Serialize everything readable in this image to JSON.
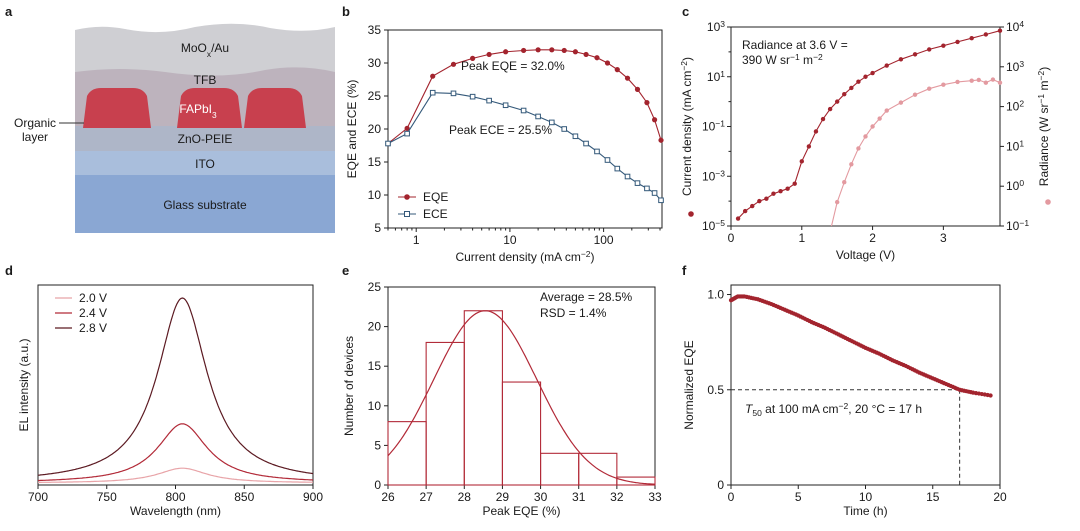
{
  "figure": {
    "panel_letters": [
      "a",
      "b",
      "c",
      "d",
      "e",
      "f"
    ]
  },
  "device_stack": {
    "layers": [
      {
        "label": "MoO",
        "sub": "x",
        "tail": "/Au",
        "color": "#cfcfd3"
      },
      {
        "label": "TFB",
        "color": "#bdb3bd"
      },
      {
        "label": "FAPbI",
        "sub": "3",
        "color": "#c8404e"
      },
      {
        "label": "ZnO-PEIE",
        "color": "#aeb6c8"
      },
      {
        "label": "ITO",
        "color": "#a9bedc"
      },
      {
        "label": "Glass substrate",
        "color": "#8aa7d3"
      }
    ],
    "side_label_line1": "Organic",
    "side_label_line2": "layer"
  },
  "chart_data": [
    {
      "panel": "b",
      "type": "line",
      "xscale": "log",
      "xlabel": "Current density (mA cm⁻²)",
      "ylabel": "EQE and ECE (%)",
      "xlim": [
        0.5,
        420
      ],
      "ylim": [
        5,
        35
      ],
      "xticks": [
        1,
        10,
        100
      ],
      "yticks": [
        5,
        10,
        15,
        20,
        25,
        30,
        35
      ],
      "legend": "bottom-left",
      "annotations": [
        "Peak EQE = 32.0%",
        "Peak ECE = 25.5%"
      ],
      "series": [
        {
          "name": "EQE",
          "color": "#a3242e",
          "marker": "circle-filled",
          "x": [
            0.5,
            0.8,
            1.5,
            2.5,
            4,
            6,
            9,
            14,
            20,
            28,
            38,
            50,
            65,
            85,
            110,
            140,
            180,
            230,
            290,
            350,
            410
          ],
          "y": [
            17.8,
            20.1,
            28.0,
            29.8,
            30.7,
            31.3,
            31.7,
            31.9,
            32.0,
            32.0,
            31.9,
            31.7,
            31.3,
            30.8,
            30.0,
            29.0,
            27.7,
            26.0,
            24.0,
            21.4,
            18.3
          ]
        },
        {
          "name": "ECE",
          "color": "#34597a",
          "marker": "square-open",
          "x": [
            0.5,
            0.8,
            1.5,
            2.5,
            4,
            6,
            9,
            14,
            20,
            28,
            38,
            50,
            65,
            85,
            110,
            140,
            180,
            230,
            290,
            350,
            410
          ],
          "y": [
            17.8,
            19.3,
            25.5,
            25.4,
            24.9,
            24.3,
            23.6,
            22.8,
            21.9,
            21.0,
            20.0,
            18.9,
            17.8,
            16.6,
            15.3,
            14.0,
            12.8,
            11.8,
            11.0,
            10.3,
            9.2
          ]
        }
      ]
    },
    {
      "panel": "c",
      "type": "line",
      "xlabel": "Voltage (V)",
      "ylabel_left": "Current density (mA cm⁻²)",
      "ylabel_right": "Radiance (W sr⁻¹ m⁻²)",
      "xlim": [
        0,
        3.8
      ],
      "xticks": [
        0,
        1,
        2,
        3
      ],
      "ylim_left_log10": [
        -5,
        3
      ],
      "ylim_right_log10": [
        -1,
        4
      ],
      "left_tick_labels": [
        "10⁻⁵",
        "10⁻³",
        "10⁻¹",
        "10¹",
        "10³"
      ],
      "right_tick_labels": [
        "10⁻¹",
        "10⁰",
        "10¹",
        "10²",
        "10³",
        "10⁴"
      ],
      "annotation_line1": "Radiance at 3.6 V =",
      "annotation_line2": "390 W sr⁻¹ m⁻²",
      "series": [
        {
          "name": "Current density",
          "axis": "left",
          "color": "#a3242e",
          "x": [
            0.1,
            0.2,
            0.3,
            0.4,
            0.5,
            0.6,
            0.7,
            0.8,
            0.9,
            1.0,
            1.1,
            1.2,
            1.3,
            1.4,
            1.5,
            1.6,
            1.7,
            1.8,
            1.9,
            2.0,
            2.2,
            2.4,
            2.6,
            2.8,
            3.0,
            3.2,
            3.4,
            3.6,
            3.8
          ],
          "y_log10": [
            -4.7,
            -4.4,
            -4.2,
            -4.0,
            -3.9,
            -3.7,
            -3.6,
            -3.5,
            -3.3,
            -2.4,
            -1.8,
            -1.2,
            -0.7,
            -0.3,
            0.0,
            0.3,
            0.55,
            0.8,
            1.0,
            1.15,
            1.45,
            1.7,
            1.9,
            2.1,
            2.25,
            2.4,
            2.55,
            2.7,
            2.85
          ]
        },
        {
          "name": "Radiance",
          "axis": "right",
          "color": "#e39aa0",
          "x": [
            1.42,
            1.5,
            1.6,
            1.7,
            1.8,
            1.9,
            2.0,
            2.1,
            2.2,
            2.4,
            2.6,
            2.8,
            3.0,
            3.2,
            3.4,
            3.5,
            3.6,
            3.7,
            3.8
          ],
          "y_log10": [
            -1.0,
            -0.4,
            0.1,
            0.55,
            0.95,
            1.25,
            1.5,
            1.7,
            1.9,
            2.1,
            2.3,
            2.45,
            2.55,
            2.62,
            2.65,
            2.67,
            2.6,
            2.68,
            2.6
          ]
        }
      ]
    },
    {
      "panel": "d",
      "type": "line",
      "xlabel": "Wavelength (nm)",
      "ylabel": "EL intensity (a.u.)",
      "xlim": [
        700,
        900
      ],
      "xticks": [
        700,
        750,
        800,
        850,
        900
      ],
      "legend": "top-left",
      "peak_nm": 805,
      "series": [
        {
          "name": "2.0 V",
          "color": "#e8a4a8",
          "peak": 0.08,
          "width_nm": 22
        },
        {
          "name": "2.4 V",
          "color": "#b22a38",
          "peak": 0.32,
          "width_nm": 22
        },
        {
          "name": "2.8 V",
          "color": "#5c1a22",
          "peak": 1.0,
          "width_nm": 22
        }
      ]
    },
    {
      "panel": "e",
      "type": "bar",
      "xlabel": "Peak EQE (%)",
      "ylabel": "Number of devices",
      "xlim": [
        26,
        33
      ],
      "ylim": [
        0,
        25
      ],
      "xticks": [
        26,
        27,
        28,
        29,
        30,
        31,
        32,
        33
      ],
      "yticks": [
        0,
        5,
        10,
        15,
        20,
        25
      ],
      "bins": [
        [
          26,
          27,
          8
        ],
        [
          27,
          28,
          18
        ],
        [
          28,
          29,
          22
        ],
        [
          29,
          30,
          13
        ],
        [
          30,
          31,
          4
        ],
        [
          31,
          32,
          4
        ],
        [
          32,
          33,
          1
        ]
      ],
      "fit_mean": 28.55,
      "fit_sigma": 1.35,
      "fit_peak": 22,
      "annotation_line1": "Average = 28.5%",
      "annotation_line2": "RSD = 1.4%",
      "color": "#b22a38"
    },
    {
      "panel": "f",
      "type": "line",
      "xlabel": "Time (h)",
      "ylabel": "Normalized EQE",
      "xlim": [
        0,
        20
      ],
      "ylim": [
        0,
        1.05
      ],
      "xticks": [
        0,
        5,
        10,
        15,
        20
      ],
      "yticks": [
        0,
        0.5,
        1.0
      ],
      "ytick_labels": [
        "0",
        "0.5",
        "1.0"
      ],
      "t50": 17,
      "annotation": "T₅₀ at 100 mA cm⁻², 20 °C = 17 h",
      "series": [
        {
          "name": "Normalized EQE",
          "color": "#a3242e",
          "x": [
            0,
            0.5,
            1,
            2,
            3,
            4,
            5,
            6,
            7,
            8,
            9,
            10,
            11,
            12,
            13,
            14,
            15,
            16,
            17,
            18,
            19.3
          ],
          "y": [
            0.97,
            0.99,
            0.99,
            0.975,
            0.95,
            0.92,
            0.89,
            0.855,
            0.825,
            0.79,
            0.755,
            0.72,
            0.69,
            0.655,
            0.625,
            0.59,
            0.56,
            0.53,
            0.5,
            0.485,
            0.47
          ]
        }
      ]
    }
  ]
}
